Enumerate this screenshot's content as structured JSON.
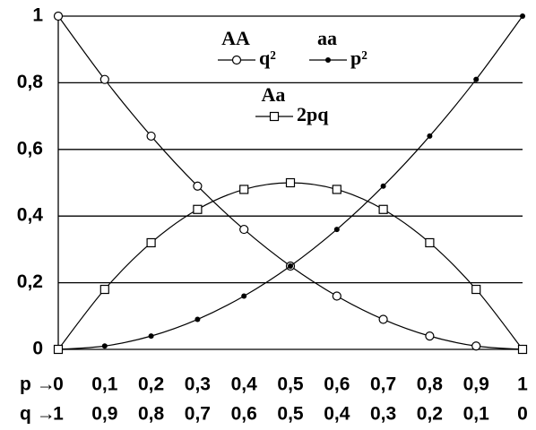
{
  "chart_data": {
    "type": "line",
    "x": [
      0,
      0.1,
      0.2,
      0.3,
      0.4,
      0.5,
      0.6,
      0.7,
      0.8,
      0.9,
      1
    ],
    "series": [
      {
        "name": "AA",
        "formula": "q²",
        "marker": "open-circle",
        "color": "#000000",
        "values": [
          1,
          0.81,
          0.64,
          0.49,
          0.36,
          0.25,
          0.16,
          0.09,
          0.04,
          0.01,
          0
        ]
      },
      {
        "name": "aa",
        "formula": "p²",
        "marker": "dot",
        "color": "#000000",
        "values": [
          0,
          0.01,
          0.04,
          0.09,
          0.16,
          0.25,
          0.36,
          0.49,
          0.64,
          0.81,
          1
        ]
      },
      {
        "name": "Aa",
        "formula": "2pq",
        "marker": "open-square",
        "color": "#000000",
        "values": [
          0,
          0.18,
          0.32,
          0.42,
          0.48,
          0.5,
          0.48,
          0.42,
          0.32,
          0.18,
          0
        ]
      }
    ],
    "xlim": [
      0,
      1
    ],
    "ylim": [
      0,
      1
    ],
    "yticks": [
      0,
      {
        "value": 0.2,
        "label": "0,2"
      },
      {
        "value": 0.4,
        "label": "0,4"
      },
      {
        "value": 0.6,
        "label": "0,6"
      },
      {
        "value": 0.8,
        "label": "0,8"
      },
      1
    ],
    "xlabel": "p →",
    "xticks": [
      0,
      {
        "value": 0.1,
        "label": "0,1"
      },
      {
        "value": 0.2,
        "label": "0,2"
      },
      {
        "value": 0.3,
        "label": "0,3"
      },
      {
        "value": 0.4,
        "label": "0,4"
      },
      {
        "value": 0.5,
        "label": "0,5"
      },
      {
        "value": 0.6,
        "label": "0,6"
      },
      {
        "value": 0.7,
        "label": "0,7"
      },
      {
        "value": 0.8,
        "label": "0,8"
      },
      {
        "value": 0.9,
        "label": "0,9"
      },
      1
    ],
    "qlabel": "q →",
    "qticks": [
      1,
      {
        "value": 0.9,
        "label": "0,9"
      },
      {
        "value": 0.8,
        "label": "0,8"
      },
      {
        "value": 0.7,
        "label": "0,7"
      },
      {
        "value": 0.6,
        "label": "0,6"
      },
      {
        "value": 0.5,
        "label": "0,5"
      },
      {
        "value": 0.4,
        "label": "0,4"
      },
      {
        "value": 0.3,
        "label": "0,3"
      },
      {
        "value": 0.2,
        "label": "0,2"
      },
      {
        "value": 0.1,
        "label": "0,1"
      },
      0
    ],
    "grid": true
  }
}
